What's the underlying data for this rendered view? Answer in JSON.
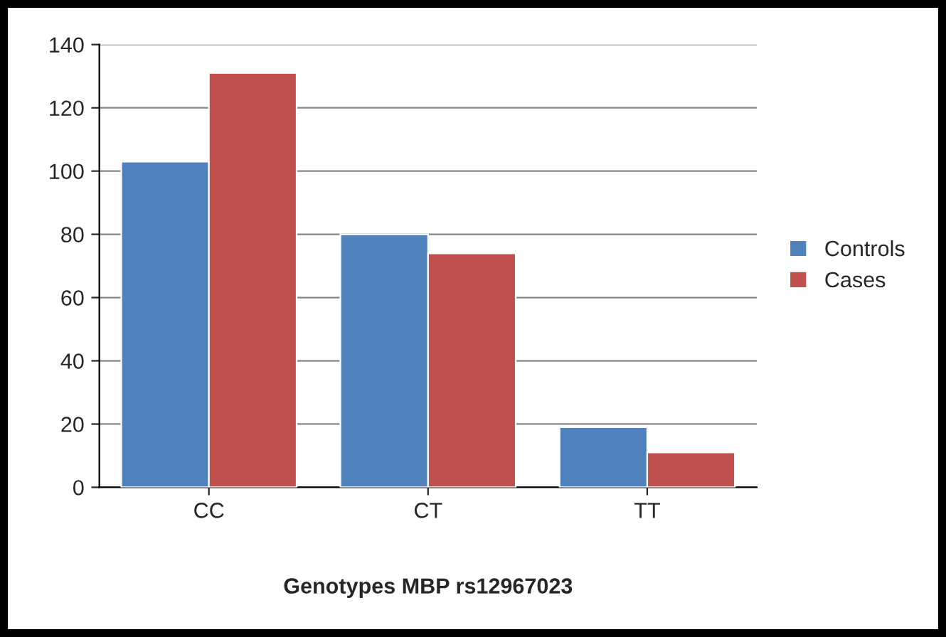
{
  "chart_data": {
    "type": "bar",
    "xlabel": "Genotypes MBP rs12967023",
    "categories": [
      "CC",
      "CT",
      "TT"
    ],
    "series": [
      {
        "name": "Controls",
        "color": "#4f81bd",
        "values": [
          103,
          80,
          19
        ]
      },
      {
        "name": "Cases",
        "color": "#c0504d",
        "values": [
          131,
          74,
          11
        ]
      }
    ],
    "ylim": [
      0,
      140
    ],
    "yticks": [
      0,
      20,
      40,
      60,
      80,
      100,
      120,
      140
    ],
    "grid": "y",
    "legend": "right"
  }
}
